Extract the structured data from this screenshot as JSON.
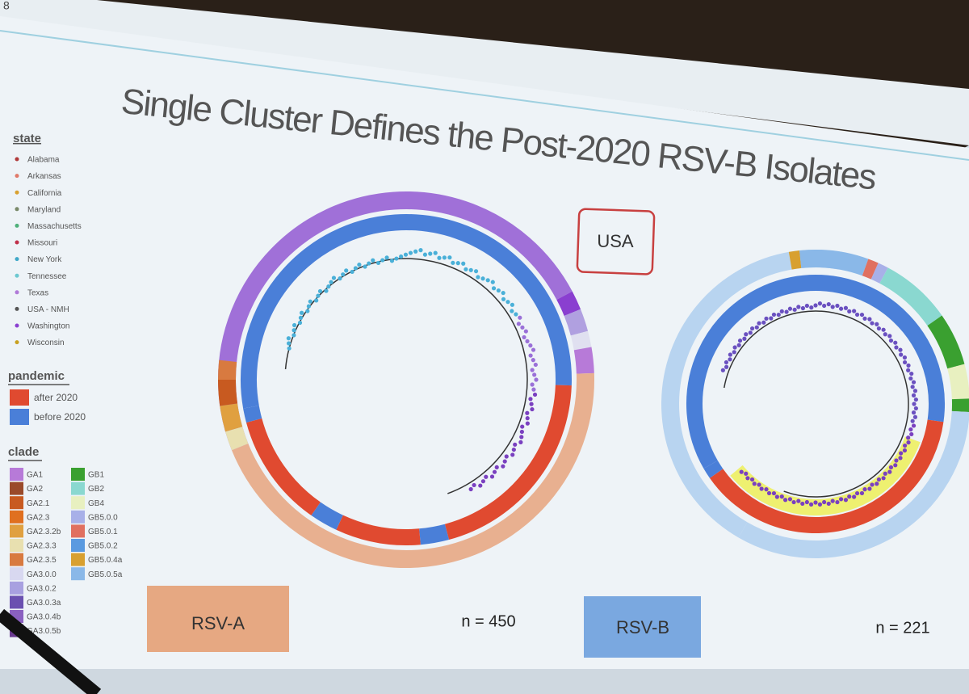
{
  "slide_number": "8",
  "title": "Single Cluster Defines the Post-2020 RSV-B Isolates",
  "legend": {
    "state": {
      "title": "state",
      "items": [
        {
          "label": "Alabama",
          "color": "#b03a3a"
        },
        {
          "label": "Arkansas",
          "color": "#e07a6a"
        },
        {
          "label": "California",
          "color": "#d9a130"
        },
        {
          "label": "Maryland",
          "color": "#7a8a6a"
        },
        {
          "label": "Massachusetts",
          "color": "#4fb07a"
        },
        {
          "label": "Missouri",
          "color": "#c0304a"
        },
        {
          "label": "New York",
          "color": "#3fa8c8"
        },
        {
          "label": "Tennessee",
          "color": "#6cc8d0"
        },
        {
          "label": "Texas",
          "color": "#b07ad8"
        },
        {
          "label": "USA - NMH",
          "color": "#555555"
        },
        {
          "label": "Washington",
          "color": "#8a3fd0"
        },
        {
          "label": "Wisconsin",
          "color": "#c8a020"
        }
      ]
    },
    "pandemic": {
      "title": "pandemic",
      "items": [
        {
          "label": "after 2020",
          "color": "#e04a30"
        },
        {
          "label": "before 2020",
          "color": "#4a7fd8"
        }
      ]
    },
    "clade": {
      "title": "clade",
      "items": [
        {
          "label": "GA1",
          "color": "#b77ad8"
        },
        {
          "label": "GA2",
          "color": "#9a4a2a"
        },
        {
          "label": "GA2.1",
          "color": "#c85a20"
        },
        {
          "label": "GA2.3",
          "color": "#e07020"
        },
        {
          "label": "GA2.3.2b",
          "color": "#e0a040"
        },
        {
          "label": "GA2.3.3",
          "color": "#e8e0b0"
        },
        {
          "label": "GA2.3.5",
          "color": "#d87a40"
        },
        {
          "label": "GA3.0.0",
          "color": "#d8d8f0"
        },
        {
          "label": "GA3.0.2",
          "color": "#a8a0e0"
        },
        {
          "label": "GA3.0.3a",
          "color": "#6a50b0"
        },
        {
          "label": "GA3.0.4b",
          "color": "#8a60c0"
        },
        {
          "label": "GA3.0.5b",
          "color": "#6a3a90"
        },
        {
          "label": "GB1",
          "color": "#3aa030"
        },
        {
          "label": "GB2",
          "color": "#8ad8d0"
        },
        {
          "label": "GB4",
          "color": "#e8f0c0"
        },
        {
          "label": "GB5.0.0",
          "color": "#a8b0e8"
        },
        {
          "label": "GB5.0.1",
          "color": "#e07060"
        },
        {
          "label": "GB5.0.2",
          "color": "#5a9ae0"
        },
        {
          "label": "GB5.0.4a",
          "color": "#d8a030"
        },
        {
          "label": "GB5.0.5a",
          "color": "#8ab8e8"
        }
      ]
    }
  },
  "region_label": "USA",
  "panels": [
    {
      "label": "RSV-A",
      "n": "n = 450"
    },
    {
      "label": "RSV-B",
      "n": "n = 221"
    }
  ]
}
